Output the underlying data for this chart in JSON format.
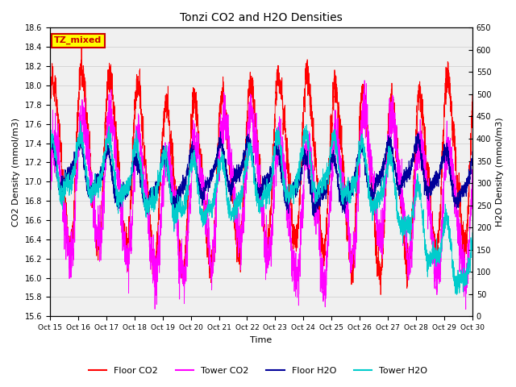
{
  "title": "Tonzi CO2 and H2O Densities",
  "xlabel": "Time",
  "ylabel_left": "CO2 Density (mmol/m3)",
  "ylabel_right": "H2O Density (mmol/m3)",
  "ylim_left": [
    15.6,
    18.6
  ],
  "ylim_right": [
    0,
    650
  ],
  "yticks_left": [
    15.6,
    15.8,
    16.0,
    16.2,
    16.4,
    16.6,
    16.8,
    17.0,
    17.2,
    17.4,
    17.6,
    17.8,
    18.0,
    18.2,
    18.4,
    18.6
  ],
  "yticks_right": [
    0,
    50,
    100,
    150,
    200,
    250,
    300,
    350,
    400,
    450,
    500,
    550,
    600,
    650
  ],
  "xtick_labels": [
    "Oct 15",
    "Oct 16",
    "Oct 17",
    "Oct 18",
    "Oct 19",
    "Oct 20",
    "Oct 21",
    "Oct 22",
    "Oct 23",
    "Oct 24",
    "Oct 25",
    "Oct 26",
    "Oct 27",
    "Oct 28",
    "Oct 29",
    "Oct 30"
  ],
  "annotation_text": "TZ_mixed",
  "annotation_bg": "#ffff00",
  "annotation_fg": "#cc0000",
  "annotation_edge": "#cc0000",
  "colors": {
    "floor_co2": "#ff0000",
    "tower_co2": "#ff00ff",
    "floor_h2o": "#000099",
    "tower_h2o": "#00cccc"
  },
  "legend_labels": [
    "Floor CO2",
    "Tower CO2",
    "Floor H2O",
    "Tower H2O"
  ],
  "grid_color": "#cccccc",
  "n_points": 4320,
  "days": 15
}
